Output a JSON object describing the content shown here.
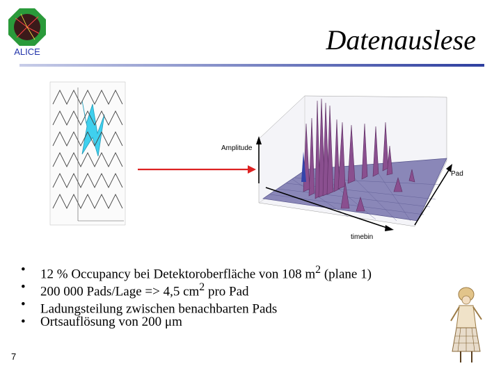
{
  "logo": {
    "text": "ALICE"
  },
  "title": "Datenauslese",
  "figure": {
    "label_amplitude": "Amplitude",
    "label_pad": "Pad",
    "label_timebin": "timebin"
  },
  "bullets": [
    {
      "pre": "12 % Occupancy bei Detektoroberfläche von 108 m",
      "sup": "2",
      "post": " (plane 1)"
    },
    {
      "pre": "200 000 Pads/Lage => 4,5 cm",
      "sup": "2",
      "post": " pro Pad"
    },
    {
      "pre": "Ladungsteilung zwischen benachbarten Pads",
      "sup": "",
      "post": ""
    },
    {
      "pre": "Ortsauflösung von 200 ",
      "sym": "μ",
      "post": "m"
    }
  ],
  "page_number": "7",
  "colors": {
    "accent": "#3344aa",
    "arrow": "#dd2222",
    "surface": "#8a87b8",
    "peak": "#8a4f8f",
    "cyan": "#3fd0ee"
  }
}
